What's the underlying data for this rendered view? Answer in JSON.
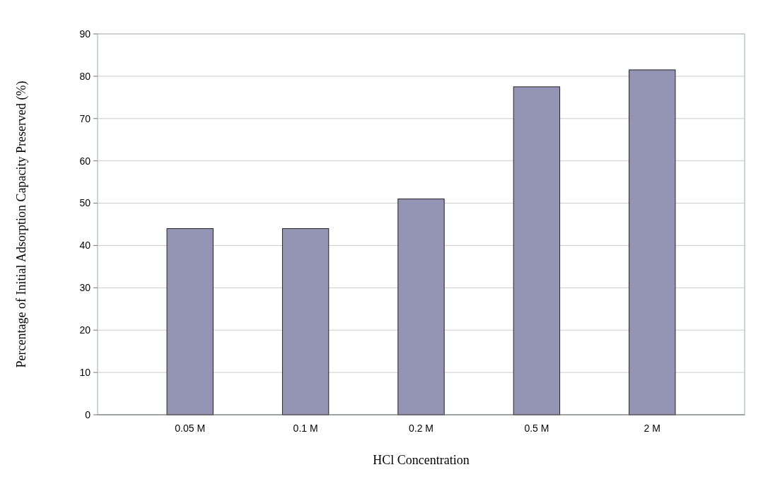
{
  "chart_data": {
    "type": "bar",
    "xlabel": "HCl Concentration",
    "ylabel": "Percentage of Initial Adsorption Capacity Preserved (%)",
    "categories": [
      "0.05 M",
      "0.1 M",
      "0.2 M",
      "0.5 M",
      "2 M"
    ],
    "values": [
      44,
      44,
      51,
      77.5,
      81.5
    ],
    "color": "#9494b4",
    "ylim": [
      0,
      90
    ],
    "yticks": [
      0,
      10,
      20,
      30,
      40,
      50,
      60,
      70,
      80,
      90
    ],
    "grid": "y"
  }
}
